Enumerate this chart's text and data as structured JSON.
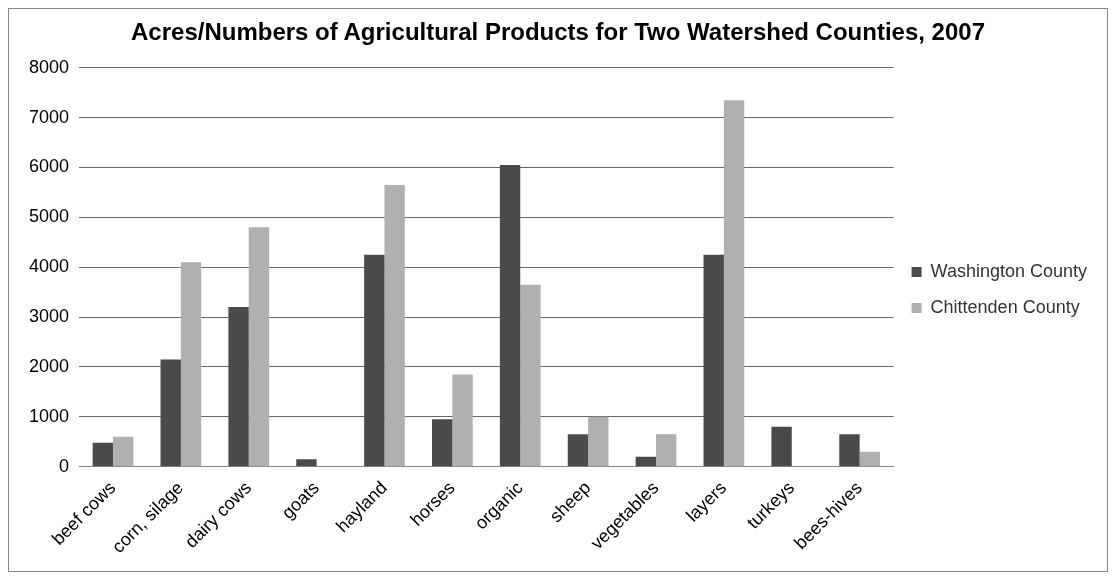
{
  "chart_data": {
    "type": "bar",
    "title": "Acres/Numbers of Agricultural Products for Two Watershed Counties, 2007",
    "categories": [
      "beef cows",
      "corn, silage",
      "dairy cows",
      "goats",
      "hayland",
      "horses",
      "organic",
      "sheep",
      "vegetables",
      "layers",
      "turkeys",
      "bees-hives"
    ],
    "series": [
      {
        "name": "Washington County",
        "color": "#4a4a4a",
        "values": [
          480,
          2150,
          3200,
          150,
          4250,
          950,
          6050,
          650,
          200,
          4250,
          800,
          650
        ]
      },
      {
        "name": "Chittenden County",
        "color": "#b0b0b0",
        "values": [
          600,
          4100,
          4800,
          null,
          5650,
          1850,
          3650,
          1000,
          650,
          7350,
          null,
          300
        ]
      }
    ],
    "ylim": [
      0,
      8000
    ],
    "yticks": [
      0,
      1000,
      2000,
      3000,
      4000,
      5000,
      6000,
      7000,
      8000
    ],
    "grid": "y",
    "legend": "right"
  }
}
